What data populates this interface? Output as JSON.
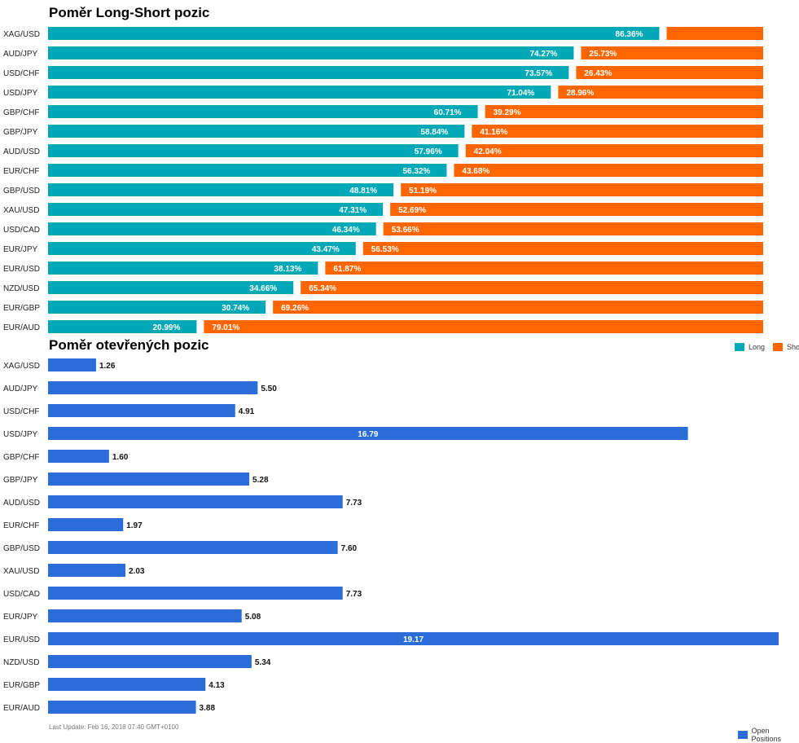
{
  "chart_data": [
    {
      "type": "bar",
      "orientation": "horizontal",
      "stacked": true,
      "title": "Poměr Long-Short pozic",
      "categories": [
        "XAG/USD",
        "AUD/JPY",
        "USD/CHF",
        "USD/JPY",
        "GBP/CHF",
        "GBP/JPY",
        "AUD/USD",
        "EUR/CHF",
        "GBP/USD",
        "XAU/USD",
        "USD/CAD",
        "EUR/JPY",
        "EUR/USD",
        "NZD/USD",
        "EUR/GBP",
        "EUR/AUD"
      ],
      "series": [
        {
          "name": "Long",
          "color": "#00a8b8",
          "values": [
            86.36,
            74.27,
            73.57,
            71.04,
            60.71,
            58.84,
            57.96,
            56.32,
            48.81,
            47.31,
            46.34,
            43.47,
            38.13,
            34.66,
            30.74,
            20.99
          ],
          "labels": [
            "86.36%",
            "74.27%",
            "73.57%",
            "71.04%",
            "60.71%",
            "58.84%",
            "57.96%",
            "56.32%",
            "48.81%",
            "47.31%",
            "46.34%",
            "43.47%",
            "38.13%",
            "34.66%",
            "30.74%",
            "20.99%"
          ]
        },
        {
          "name": "Short",
          "color": "#ff6600",
          "values": [
            13.64,
            25.73,
            26.43,
            28.96,
            39.29,
            41.16,
            42.04,
            43.68,
            51.19,
            52.69,
            53.66,
            56.53,
            61.87,
            65.34,
            69.26,
            79.01
          ],
          "labels": [
            "",
            "25.73%",
            "26.43%",
            "28.96%",
            "39.29%",
            "41.16%",
            "42.04%",
            "43.68%",
            "51.19%",
            "52.69%",
            "53.66%",
            "56.53%",
            "61.87%",
            "65.34%",
            "69.26%",
            "79.01%"
          ]
        }
      ],
      "legend": {
        "position": "bottom-right"
      }
    },
    {
      "type": "bar",
      "orientation": "horizontal",
      "title": "Poměr otevřených pozic",
      "categories": [
        "XAG/USD",
        "AUD/JPY",
        "USD/CHF",
        "USD/JPY",
        "GBP/CHF",
        "GBP/JPY",
        "AUD/USD",
        "EUR/CHF",
        "GBP/USD",
        "XAU/USD",
        "USD/CAD",
        "EUR/JPY",
        "EUR/USD",
        "NZD/USD",
        "EUR/GBP",
        "EUR/AUD"
      ],
      "series": [
        {
          "name": "Open Positions",
          "color": "#2a6dd9",
          "values": [
            1.26,
            5.5,
            4.91,
            16.79,
            1.6,
            5.28,
            7.73,
            1.97,
            7.6,
            2.03,
            7.73,
            5.08,
            19.17,
            5.34,
            4.13,
            3.88
          ],
          "labels": [
            "1.26",
            "5.50",
            "4.91",
            "16.79",
            "1.60",
            "5.28",
            "7.73",
            "1.97",
            "7.60",
            "2.03",
            "7.73",
            "5.08",
            "19.17",
            "5.34",
            "4.13",
            "3.88"
          ]
        }
      ],
      "xlim": [
        0,
        19.17
      ],
      "legend": {
        "position": "bottom-right"
      }
    }
  ],
  "footer": "Last Update: Feb 16, 2018 07:40 GMT+0100"
}
